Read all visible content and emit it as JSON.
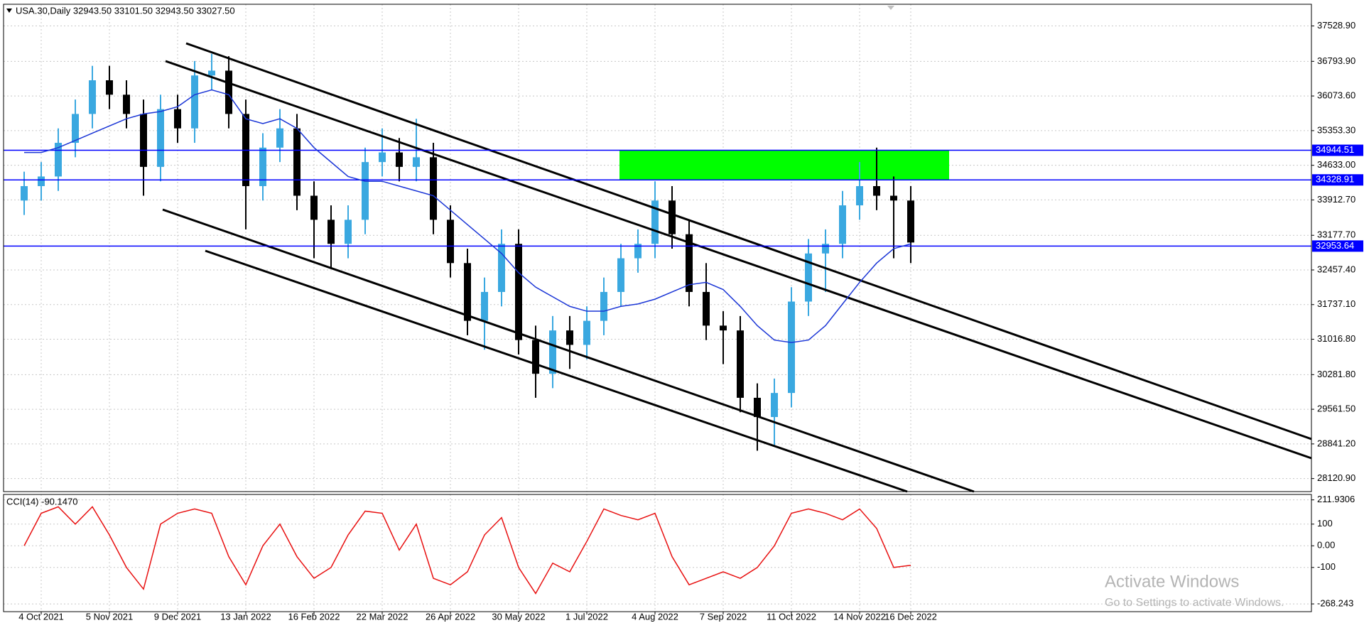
{
  "chart_data": {
    "type": "candlestick",
    "title": "USA.30,Daily  32943.50 33101.50 32943.50 33027.50",
    "categories": [
      null,
      "4 Oct 2021",
      null,
      null,
      null,
      "5 Nov 2021",
      null,
      null,
      null,
      "9 Dec 2021",
      null,
      null,
      null,
      "13 Jan 2022",
      null,
      null,
      null,
      "16 Feb 2022",
      null,
      null,
      null,
      "22 Mar 2022",
      null,
      null,
      null,
      "26 Apr 2022",
      null,
      null,
      null,
      "30 May 2022",
      null,
      null,
      null,
      "1 Jul 2022",
      null,
      null,
      null,
      "4 Aug 2022",
      null,
      null,
      null,
      "7 Sep 2022",
      null,
      null,
      null,
      "11 Oct 2022",
      null,
      null,
      null,
      "14 Nov 2022",
      null,
      null,
      "16 Dec 2022"
    ],
    "open": [
      33900,
      34200,
      34400,
      35100,
      35700,
      36400,
      36100,
      35700,
      34600,
      35800,
      35400,
      36500,
      36600,
      35700,
      34200,
      35000,
      35400,
      34000,
      33500,
      33000,
      33500,
      34700,
      34900,
      34600,
      34800,
      33500,
      32600,
      31400,
      32000,
      33000,
      31000,
      30300,
      31200,
      30900,
      31400,
      32000,
      32700,
      33000,
      33900,
      33200,
      32000,
      31300,
      31200,
      29800,
      29400,
      29900,
      31800,
      32800,
      33000,
      33800,
      34200,
      34000,
      33900
    ],
    "high": [
      34500,
      34700,
      35400,
      36000,
      36700,
      36700,
      36400,
      36000,
      36100,
      36100,
      36800,
      36950,
      36900,
      36000,
      35300,
      35800,
      35700,
      34300,
      33800,
      33800,
      35000,
      35400,
      35200,
      35600,
      35100,
      33800,
      32900,
      32300,
      33300,
      33300,
      31300,
      31500,
      31500,
      31700,
      32300,
      33000,
      33300,
      34300,
      34200,
      33500,
      32600,
      31600,
      31500,
      30100,
      30200,
      32100,
      33100,
      33300,
      34100,
      34700,
      35000,
      34400,
      34200
    ],
    "low": [
      33600,
      33900,
      34100,
      34800,
      35400,
      35800,
      35400,
      34000,
      34300,
      35100,
      35100,
      36200,
      35400,
      33300,
      33900,
      34700,
      33700,
      32700,
      32500,
      32700,
      33200,
      34400,
      34300,
      34300,
      33200,
      32300,
      31100,
      30800,
      31700,
      30700,
      29800,
      30000,
      30400,
      30600,
      31100,
      31700,
      32400,
      32700,
      32900,
      31700,
      31000,
      30500,
      29500,
      28700,
      28800,
      29600,
      31500,
      32000,
      32700,
      33500,
      33700,
      32700,
      32600
    ],
    "close": [
      34200,
      34400,
      35100,
      35700,
      36400,
      36100,
      35700,
      34600,
      35800,
      35400,
      36500,
      36600,
      35700,
      34200,
      35000,
      35400,
      34000,
      33500,
      33000,
      33500,
      34700,
      34900,
      34600,
      34800,
      33500,
      32600,
      31400,
      32000,
      33000,
      31000,
      30300,
      31200,
      30900,
      31400,
      32000,
      32700,
      33000,
      33900,
      33200,
      32000,
      31300,
      31200,
      29800,
      29400,
      29900,
      31800,
      32800,
      33000,
      33800,
      34200,
      34000,
      33900,
      33027.5
    ],
    "bull_color": "#3aa8e0",
    "bear_color": "#000000",
    "ma": {
      "color": "#1a35d6",
      "values": [
        34900,
        34900,
        35000,
        35150,
        35300,
        35450,
        35600,
        35700,
        35750,
        35850,
        36100,
        36200,
        36100,
        35600,
        35500,
        35600,
        35400,
        35000,
        34700,
        34400,
        34300,
        34300,
        34200,
        34100,
        34000,
        33700,
        33400,
        33100,
        32800,
        32400,
        32100,
        31900,
        31700,
        31600,
        31600,
        31700,
        31750,
        31850,
        32000,
        32150,
        32200,
        32050,
        31700,
        31300,
        31000,
        30950,
        31000,
        31300,
        31750,
        32200,
        32600,
        32900,
        33000
      ]
    },
    "ylim": [
      27850,
      37980
    ],
    "yticks": [
      {
        "value": 37528.9,
        "label": "37528.90"
      },
      {
        "value": 36793.9,
        "label": "36793.90"
      },
      {
        "value": 36073.6,
        "label": "36073.60"
      },
      {
        "value": 35353.3,
        "label": "35353.30"
      },
      {
        "value": 34633,
        "label": "34633.00"
      },
      {
        "value": 33912.7,
        "label": "33912.70"
      },
      {
        "value": 33177.7,
        "label": "33177.70"
      },
      {
        "value": 32457.4,
        "label": "32457.40"
      },
      {
        "value": 31737.1,
        "label": "31737.10"
      },
      {
        "value": 31016.8,
        "label": "31016.80"
      },
      {
        "value": 30281.8,
        "label": "30281.80"
      },
      {
        "value": 29561.5,
        "label": "29561.50"
      },
      {
        "value": 28841.2,
        "label": "28841.20"
      },
      {
        "value": 28120.9,
        "label": "28120.90"
      }
    ],
    "grid": true,
    "hlines": [
      34944.51,
      34328.91,
      32953.64
    ],
    "hline_color": "#0000ff",
    "zone_color": "#00ff00",
    "cci": {
      "label": "CCI(14) -90.1470",
      "color": "#e81010",
      "values": [
        0,
        150,
        180,
        100,
        180,
        50,
        -100,
        -200,
        100,
        150,
        170,
        150,
        -50,
        -180,
        0,
        100,
        -50,
        -150,
        -100,
        50,
        160,
        150,
        -20,
        100,
        -150,
        -180,
        -120,
        50,
        130,
        -100,
        -220,
        -80,
        -120,
        20,
        170,
        140,
        120,
        150,
        -50,
        -180,
        -150,
        -120,
        -150,
        -100,
        0,
        150,
        170,
        150,
        120,
        170,
        80,
        -100,
        -90.147
      ],
      "ylim": [
        -304,
        237
      ],
      "yticks": [
        211.9306,
        100,
        {
          "value": 0,
          "label": "0.00"
        },
        -100,
        -268.243
      ]
    },
    "watermark": {
      "title": "Activate Windows",
      "subtitle": "Go to Settings to activate Windows."
    }
  }
}
